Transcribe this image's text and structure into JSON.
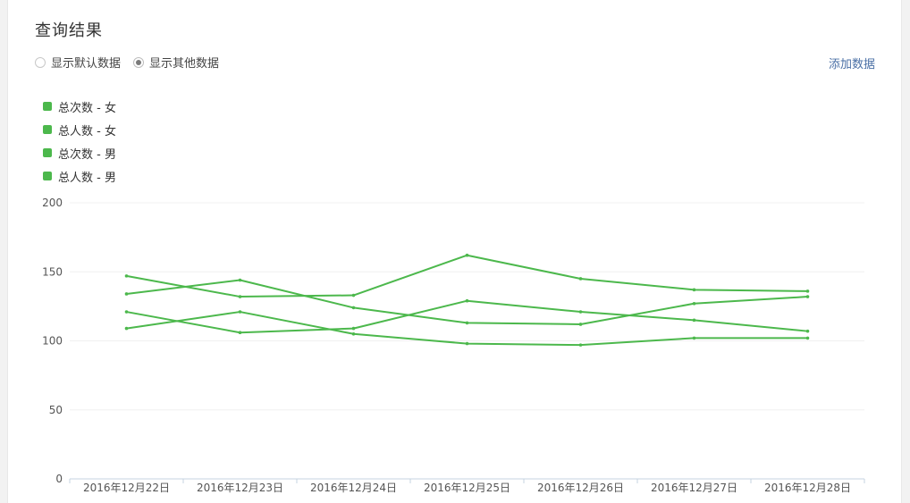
{
  "header": {
    "title": "查询结果"
  },
  "options": {
    "default_label": "显示默认数据",
    "other_label": "显示其他数据",
    "selected": "other"
  },
  "actions": {
    "add_data_label": "添加数据"
  },
  "colors": {
    "series": "#4cb84c",
    "link": "#4a6fa5",
    "grid": "#f0f0f0",
    "axis": "#c5d3e0"
  },
  "chart_data": {
    "type": "line",
    "categories": [
      "2016年12月22日",
      "2016年12月23日",
      "2016年12月24日",
      "2016年12月25日",
      "2016年12月26日",
      "2016年12月27日",
      "2016年12月28日"
    ],
    "series": [
      {
        "name": "总次数 - 女",
        "values": [
          147,
          132,
          133,
          162,
          145,
          137,
          136
        ]
      },
      {
        "name": "总人数 - 女",
        "values": [
          134,
          144,
          124,
          113,
          112,
          127,
          132
        ]
      },
      {
        "name": "总次数 - 男",
        "values": [
          121,
          106,
          109,
          129,
          121,
          115,
          107
        ]
      },
      {
        "name": "总人数 - 男",
        "values": [
          109,
          121,
          105,
          98,
          97,
          102,
          102
        ]
      }
    ],
    "yticks": [
      0,
      50,
      100,
      150,
      200
    ],
    "ylim": [
      0,
      200
    ],
    "grid": true,
    "legend_position": "top-left"
  }
}
